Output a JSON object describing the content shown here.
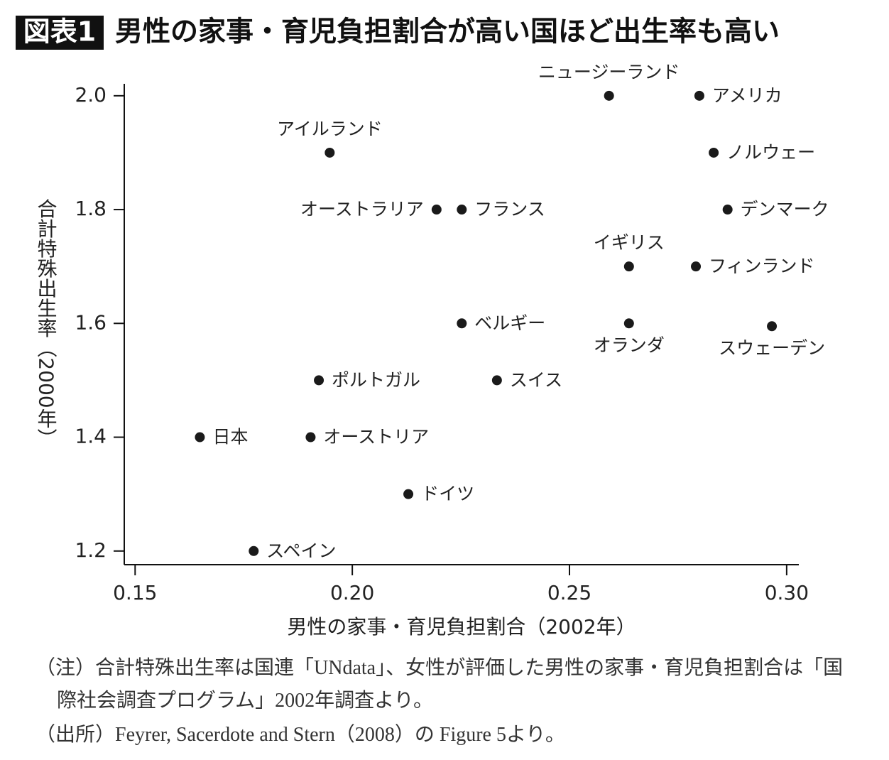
{
  "chart_data": {
    "type": "scatter",
    "badge": "図表1",
    "title": "男性の家事・育児負担割合が高い国ほど出生率も高い",
    "x_label": "男性の家事・育児負担割合（2002年）",
    "y_label": "合計特殊出生率（2000年）",
    "labels": [
      "ニュージーランド",
      "アメリカ",
      "アイルランド",
      "ノルウェー",
      "オーストラリア",
      "フランス",
      "デンマーク",
      "イギリス",
      "フィンランド",
      "ベルギー",
      "オランダ",
      "スウェーデン",
      "ポルトガル",
      "スイス",
      "日本",
      "オーストリア",
      "ドイツ",
      "スペイン"
    ],
    "x": [
      0.2591,
      0.2799,
      0.1948,
      0.2832,
      0.2194,
      0.2252,
      0.2864,
      0.2637,
      0.2791,
      0.2252,
      0.2637,
      0.2966,
      0.1923,
      0.2333,
      0.1649,
      0.1904,
      0.2129,
      0.1773
    ],
    "values": [
      2.0,
      2.0,
      1.9,
      1.9,
      1.8,
      1.8,
      1.8,
      1.7,
      1.7,
      1.6,
      1.6,
      1.595,
      1.5,
      1.5,
      1.4,
      1.4,
      1.3,
      1.2
    ],
    "color": "#1a1a1a",
    "xlim": [
      0.1475,
      0.3028
    ],
    "ylim": [
      1.176,
      2.021
    ],
    "xticks": [
      0.15,
      {
        "value": 0.2,
        "label": "0.20"
      },
      0.25,
      {
        "value": 0.3,
        "label": "0.30"
      }
    ],
    "yticks": [
      {
        "value": 2.0,
        "label": "2.0"
      },
      1.8,
      1.6,
      1.4,
      1.2
    ],
    "notes": [
      "（注）合計特殊出生率は国連「UNdata」、女性が評価した男性の家事・育児負担割合は「国際社会調査プログラム」2002年調査より。",
      "（出所）Feyrer, Sacerdote and Stern（2008）の Figure 5より。"
    ]
  }
}
